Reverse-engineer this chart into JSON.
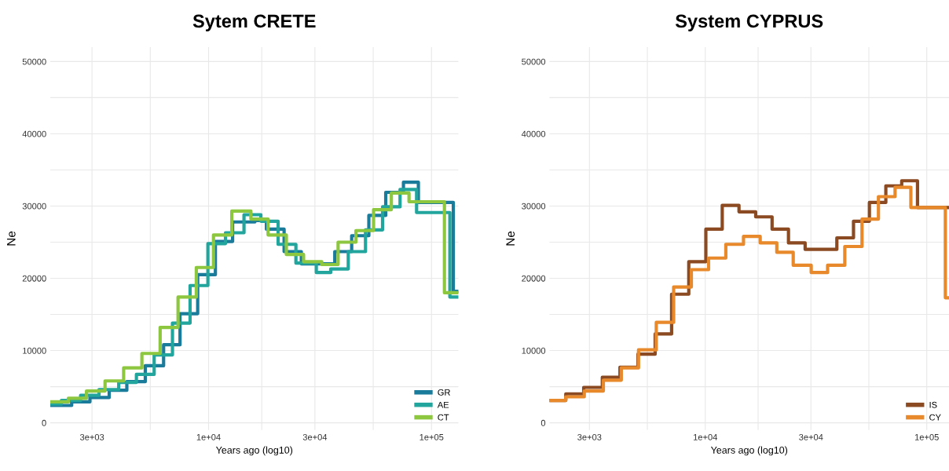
{
  "chart_data": [
    {
      "type": "step",
      "title": "Sytem CRETE",
      "xlabel": "Years ago (log10)",
      "ylabel": "Ne",
      "log": "x",
      "grid": true,
      "legend": "bottom right",
      "line_style": "solid",
      "marker": "none",
      "xlim": [
        1950,
        132000
      ],
      "ylim": [
        -1000,
        52000
      ],
      "xticks": [
        {
          "value": 3000,
          "label": "3e+03"
        },
        {
          "value": 5477,
          "label": null
        },
        {
          "value": 10000,
          "label": "1e+04"
        },
        {
          "value": 17320,
          "label": null
        },
        {
          "value": 30000,
          "label": "3e+04"
        },
        {
          "value": 54772,
          "label": null
        },
        {
          "value": 100000,
          "label": "1e+05"
        }
      ],
      "yticks": [
        0,
        {
          "value": 5000,
          "label": null
        },
        10000,
        {
          "value": 15000,
          "label": null
        },
        20000,
        {
          "value": 25000,
          "label": null
        },
        30000,
        {
          "value": 35000,
          "label": null
        },
        40000,
        {
          "value": 45000,
          "label": null
        },
        50000
      ],
      "series": [
        {
          "name": "GR",
          "color": "#1b7b9b",
          "x": [
            1982,
            2432,
            2937,
            3583,
            4299,
            5202,
            6285,
            7447,
            8937,
            10730,
            12820,
            16140,
            18170,
            21820,
            26070,
            36830,
            43850,
            52360,
            62340,
            74850,
            87330,
            125300,
            131500
          ],
          "values": [
            2400,
            2900,
            3500,
            4500,
            5700,
            7900,
            10800,
            15100,
            20500,
            25100,
            27800,
            28000,
            26800,
            23700,
            22000,
            23700,
            25900,
            28700,
            31900,
            33300,
            30500,
            18200,
            18200
          ]
        },
        {
          "name": "AE",
          "color": "#22a59c",
          "x": [
            1982,
            2188,
            2667,
            3226,
            3954,
            4746,
            5701,
            6887,
            8261,
            9931,
            11910,
            14420,
            17170,
            20510,
            24650,
            30430,
            35320,
            42330,
            50580,
            60340,
            72270,
            85740,
            120900,
            131500
          ],
          "values": [
            2600,
            3100,
            3800,
            4600,
            5600,
            6700,
            9400,
            13800,
            19000,
            24800,
            26300,
            28800,
            27900,
            24700,
            22100,
            20800,
            21300,
            23700,
            26700,
            29900,
            32300,
            29100,
            17400,
            17400
          ]
        },
        {
          "name": "CT",
          "color": "#8dc63f",
          "x": [
            1982,
            2350,
            2834,
            3433,
            4159,
            5023,
            6064,
            7296,
            8811,
            10520,
            12710,
            15480,
            18490,
            22330,
            26680,
            32190,
            38110,
            45810,
            54970,
            66070,
            79290,
            114300,
            131500
          ],
          "values": [
            2900,
            3400,
            4400,
            5800,
            7600,
            9600,
            13200,
            17400,
            21500,
            26000,
            29300,
            28200,
            26000,
            23300,
            22300,
            21900,
            25000,
            26600,
            29500,
            31800,
            30600,
            18000,
            18000
          ]
        }
      ]
    },
    {
      "type": "step",
      "title": "System CYPRUS",
      "xlabel": "Years ago (log10)",
      "ylabel": "Ne",
      "log": "x",
      "grid": true,
      "legend": "bottom right",
      "line_style": "solid",
      "marker": "none",
      "xlim": [
        1980,
        126000
      ],
      "ylim": [
        -1000,
        52000
      ],
      "xticks": [
        {
          "value": 3000,
          "label": "3e+03"
        },
        {
          "value": 5477,
          "label": null
        },
        {
          "value": 10000,
          "label": "1e+04"
        },
        {
          "value": 17320,
          "label": null
        },
        {
          "value": 30000,
          "label": "3e+04"
        },
        {
          "value": 54772,
          "label": null
        },
        {
          "value": 100000,
          "label": "1e+05"
        }
      ],
      "yticks": [
        0,
        {
          "value": 5000,
          "label": null
        },
        10000,
        {
          "value": 15000,
          "label": null
        },
        20000,
        {
          "value": 25000,
          "label": null
        },
        30000,
        {
          "value": 35000,
          "label": null
        },
        40000,
        {
          "value": 45000,
          "label": null
        },
        50000
      ],
      "series": [
        {
          "name": "IS",
          "color": "#8b4a22",
          "x": [
            1990,
            2346,
            2826,
            3430,
            4120,
            4966,
            5940,
            7047,
            8425,
            10060,
            11930,
            14200,
            16890,
            20030,
            23750,
            28240,
            39270,
            46690,
            55080,
            65340,
            77070,
            90810,
            126000
          ],
          "values": [
            3100,
            4000,
            4900,
            6300,
            7700,
            9500,
            12300,
            17800,
            22300,
            26800,
            30100,
            29200,
            28500,
            26800,
            24900,
            24000,
            25600,
            27900,
            30500,
            32800,
            33500,
            29800,
            29800
          ]
        },
        {
          "name": "CY",
          "color": "#e8892b",
          "x": [
            1990,
            2346,
            2843,
            3467,
            4178,
            4997,
            6009,
            7199,
            8654,
            10350,
            12380,
            14880,
            17700,
            21040,
            24950,
            30080,
            35670,
            42650,
            51010,
            60510,
            71920,
            84760,
            121300,
            126000
          ],
          "values": [
            3100,
            3600,
            4400,
            5900,
            7600,
            10100,
            13900,
            18800,
            21200,
            22800,
            24700,
            25800,
            24900,
            23600,
            21800,
            20800,
            21800,
            24400,
            28200,
            31300,
            32600,
            29800,
            17300,
            17300
          ]
        }
      ]
    }
  ]
}
